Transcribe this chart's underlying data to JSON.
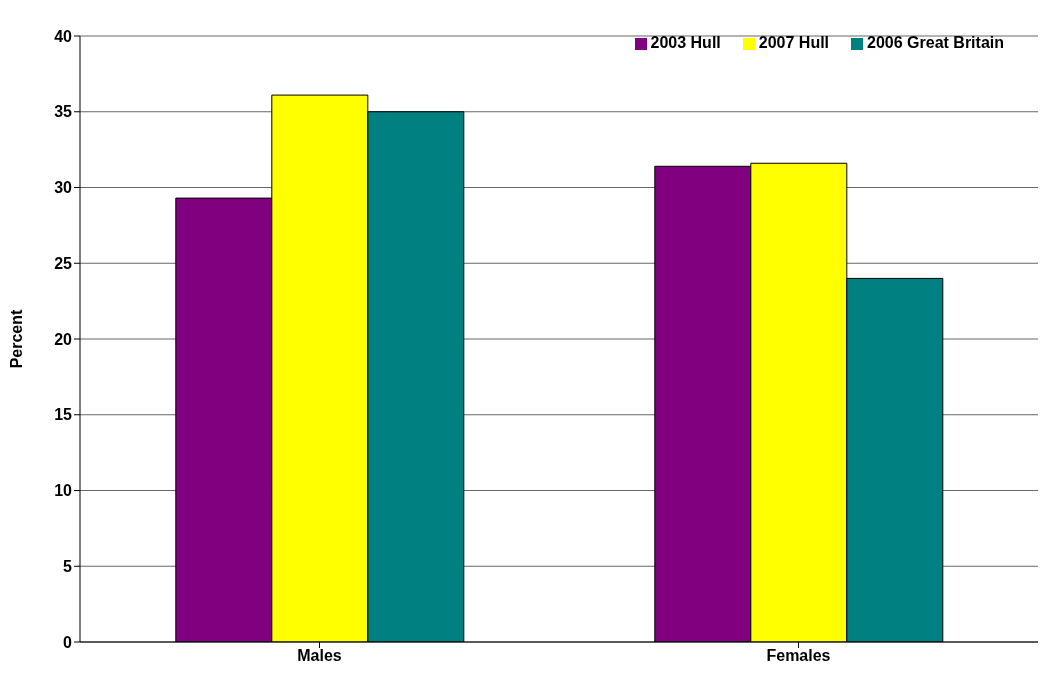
{
  "chart_data": {
    "type": "bar",
    "ylabel": "Percent",
    "categories": [
      "Males",
      "Females"
    ],
    "series": [
      {
        "name": "2003 Hull",
        "color": "#800080",
        "values": [
          29.3,
          31.4
        ]
      },
      {
        "name": "2007 Hull",
        "color": "#ffff00",
        "values": [
          36.1,
          31.6
        ]
      },
      {
        "name": "2006 Great Britain",
        "color": "#008080",
        "values": [
          35.0,
          24.0
        ]
      }
    ],
    "ylim": [
      0,
      40
    ],
    "yticks": [
      0,
      5,
      10,
      15,
      20,
      25,
      30,
      35,
      40
    ],
    "grid": "y",
    "legend": "top right"
  }
}
